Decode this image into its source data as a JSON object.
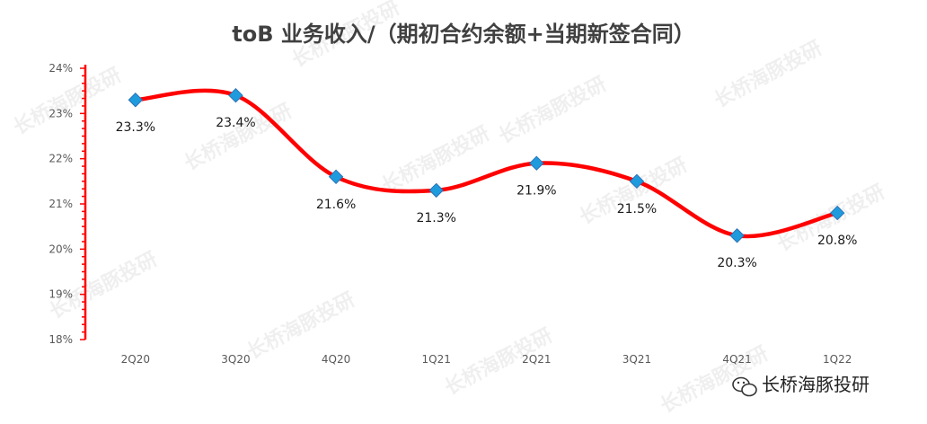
{
  "chart_data": {
    "type": "line",
    "title": "toB 业务收入/（期初合约余额+当期新签合同）",
    "categories": [
      "2Q20",
      "3Q20",
      "4Q20",
      "1Q21",
      "2Q21",
      "3Q21",
      "4Q21",
      "1Q22"
    ],
    "series": [
      {
        "values": [
          23.3,
          23.4,
          21.6,
          21.3,
          21.9,
          21.5,
          20.3,
          20.8
        ],
        "labels": [
          "23.3%",
          "23.4%",
          "21.6%",
          "21.3%",
          "21.9%",
          "21.5%",
          "20.3%",
          "20.8%"
        ]
      }
    ],
    "y_ticks": [
      "18%",
      "19%",
      "20%",
      "21%",
      "22%",
      "23%",
      "24%"
    ],
    "ylim": [
      18,
      24
    ],
    "grid": false,
    "legend": "none",
    "colors": {
      "line": "#ff0000",
      "marker": "#1e9bdc",
      "marker_edge": "#2a73b8",
      "axis": "#ff0000"
    }
  },
  "watermark": {
    "text": "长桥海豚投研"
  },
  "brand": {
    "text": "长桥海豚投研",
    "icon": "wechat-icon"
  }
}
